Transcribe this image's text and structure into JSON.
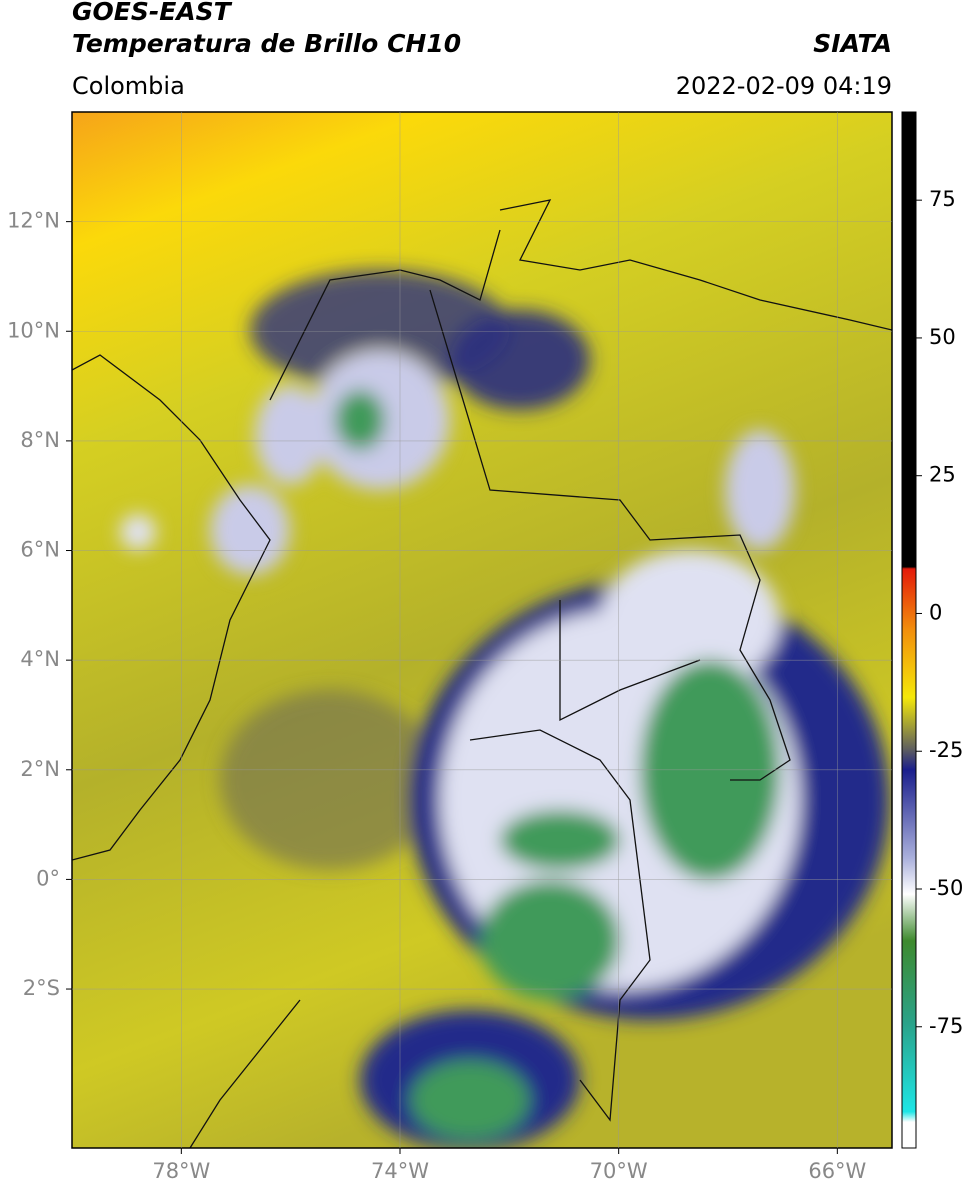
{
  "header": {
    "satellite": "GOES-EAST",
    "product": "Temperatura de Brillo CH10",
    "source": "SIATA",
    "region": "Colombia",
    "datetime": "2022-02-09 04:19"
  },
  "map": {
    "xlim": [
      -80,
      -65
    ],
    "ylim": [
      -4.9,
      14
    ],
    "xticks": [
      {
        "value": -78,
        "label": "78°W"
      },
      {
        "value": -74,
        "label": "74°W"
      },
      {
        "value": -70,
        "label": "70°W"
      },
      {
        "value": -66,
        "label": "66°W"
      }
    ],
    "yticks": [
      {
        "value": 12,
        "label": "12°N"
      },
      {
        "value": 10,
        "label": "10°N"
      },
      {
        "value": 8,
        "label": "8°N"
      },
      {
        "value": 6,
        "label": "6°N"
      },
      {
        "value": 4,
        "label": "4°N"
      },
      {
        "value": 2,
        "label": "2°N"
      },
      {
        "value": 0,
        "label": "0°"
      },
      {
        "value": -2,
        "label": "2°S"
      }
    ]
  },
  "colorbar": {
    "ylim": [
      -97,
      91
    ],
    "yticks": [
      75,
      50,
      25,
      0,
      -25,
      -50,
      -75
    ]
  }
}
